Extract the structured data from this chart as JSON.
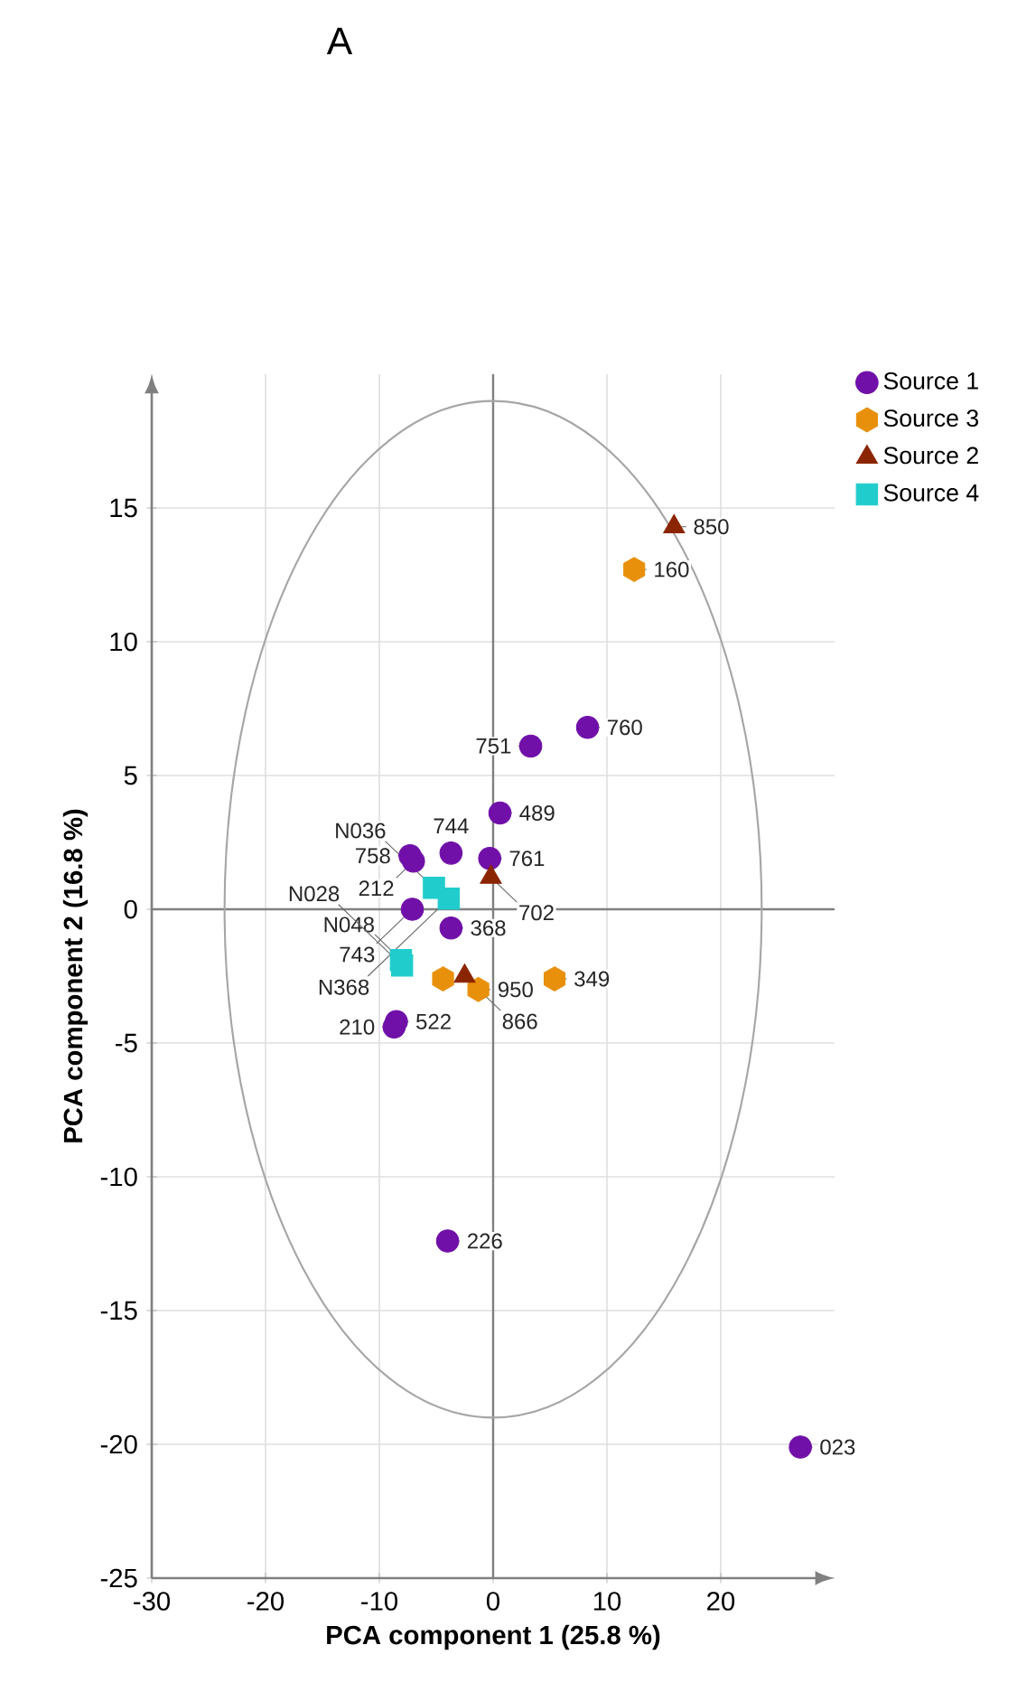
{
  "chart_data": {
    "type": "scatter",
    "title": "A",
    "xlabel": "PCA component 1 (25.8 %)",
    "ylabel": "PCA component 2 (16.8 %)",
    "xlim": [
      -30,
      30
    ],
    "ylim": [
      -25,
      20
    ],
    "xticks": [
      -30,
      -20,
      -10,
      0,
      10,
      20
    ],
    "yticks": [
      -25,
      -20,
      -15,
      -10,
      -5,
      0,
      5,
      10,
      15
    ],
    "grid": true,
    "legend": "top right",
    "series": [
      {
        "name": "Source 1",
        "color": "#7010a8",
        "marker": "circle",
        "x": [
          8.3,
          3.3,
          0.6,
          -3.7,
          -7.3,
          -7.0,
          -0.3,
          -7.1,
          -3.7,
          -8.5,
          -8.7,
          -4.0,
          27.0
        ],
        "values": [
          6.8,
          6.1,
          3.6,
          2.1,
          2.0,
          1.8,
          1.9,
          0.0,
          -0.7,
          -4.2,
          -4.4,
          -12.4,
          -20.1
        ]
      },
      {
        "name": "Source 3",
        "color": "#e8900c",
        "x": [
          12.4,
          5.4,
          -1.3,
          -4.4
        ],
        "values": [
          12.7,
          -2.6,
          -3.0,
          -2.6
        ]
      },
      {
        "name": "Source 2",
        "color": "#8b2500",
        "marker": "triangle",
        "x": [
          15.9,
          -0.2,
          -2.5
        ],
        "values": [
          14.3,
          1.2,
          -2.5
        ]
      },
      {
        "name": "Source 4",
        "color": "#20cccc",
        "marker": "square",
        "x": [
          -5.2,
          -3.9,
          -8.1,
          -8.0
        ],
        "values": [
          0.8,
          0.4,
          -1.9,
          -2.1
        ]
      }
    ],
    "annotations": [
      {
        "text": "760",
        "x": 8.3,
        "y": 6.8
      },
      {
        "text": "751",
        "x": 3.3,
        "y": 6.1
      },
      {
        "text": "489",
        "x": 0.6,
        "y": 3.6
      },
      {
        "text": "744",
        "x": -3.7,
        "y": 2.1
      },
      {
        "text": "758",
        "x": -7.3,
        "y": 2.0
      },
      {
        "text": "212",
        "x": -7.0,
        "y": 1.8
      },
      {
        "text": "761",
        "x": -0.3,
        "y": 1.9
      },
      {
        "text": "743",
        "x": -7.1,
        "y": 0.0
      },
      {
        "text": "368",
        "x": -3.7,
        "y": -0.7
      },
      {
        "text": "522",
        "x": -8.5,
        "y": -4.2
      },
      {
        "text": "210",
        "x": -8.7,
        "y": -4.4
      },
      {
        "text": "226",
        "x": -4.0,
        "y": -12.4
      },
      {
        "text": "023",
        "x": 27.0,
        "y": -20.1
      },
      {
        "text": "160",
        "x": 12.4,
        "y": 12.7
      },
      {
        "text": "349",
        "x": 5.4,
        "y": -2.6
      },
      {
        "text": "950",
        "x": -1.3,
        "y": -3.0
      },
      {
        "text": "850",
        "x": 15.9,
        "y": 14.3
      },
      {
        "text": "702",
        "x": -0.2,
        "y": 1.2
      },
      {
        "text": "866",
        "x": -2.5,
        "y": -2.5
      },
      {
        "text": "N036",
        "x": -5.2,
        "y": 0.8
      },
      {
        "text": "N368",
        "x": -3.9,
        "y": 0.4
      },
      {
        "text": "N048",
        "x": -8.1,
        "y": -1.9
      },
      {
        "text": "N028",
        "x": -8.0,
        "y": -2.1
      }
    ]
  }
}
